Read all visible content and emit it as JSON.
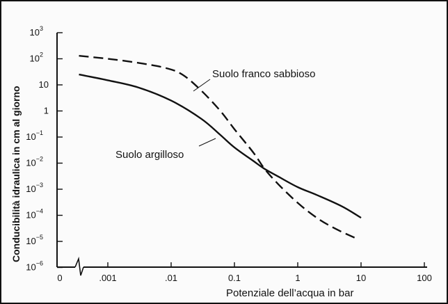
{
  "chart_data": {
    "type": "line",
    "xlabel": "Potenziale dell’acqua in bar",
    "ylabel": "Conducibilità idraulica in cm al giorno",
    "x_scale": "log",
    "y_scale": "log",
    "xlim": [
      0.0001,
      100
    ],
    "ylim": [
      1e-06,
      1000
    ],
    "x_ticks": [
      {
        "value": 0.0001,
        "label": "0"
      },
      {
        "value": 0.001,
        "label": ".001"
      },
      {
        "value": 0.01,
        "label": ".01"
      },
      {
        "value": 0.1,
        "label": "0.1"
      },
      {
        "value": 1,
        "label": "1"
      },
      {
        "value": 10,
        "label": "10"
      },
      {
        "value": 100,
        "label": "100"
      }
    ],
    "y_ticks": [
      {
        "value": 1e-06,
        "base": "10",
        "exp": "−6"
      },
      {
        "value": 1e-05,
        "base": "10",
        "exp": "−5"
      },
      {
        "value": 0.0001,
        "base": "10",
        "exp": "−4"
      },
      {
        "value": 0.001,
        "base": "10",
        "exp": "−3"
      },
      {
        "value": 0.01,
        "base": "10",
        "exp": "−2"
      },
      {
        "value": 0.1,
        "base": "10",
        "exp": "−1"
      },
      {
        "value": 1,
        "base": "1",
        "exp": ""
      },
      {
        "value": 10,
        "base": "10",
        "exp": ""
      },
      {
        "value": 100,
        "base": "10",
        "exp": "2"
      },
      {
        "value": 1000,
        "base": "10",
        "exp": "3"
      }
    ],
    "axis_break": true,
    "grid": false,
    "series": [
      {
        "name": "Suolo franco sabbioso",
        "style": "dashed",
        "x": [
          0.00035,
          0.001,
          0.003,
          0.008,
          0.015,
          0.03,
          0.06,
          0.1,
          0.2,
          0.3,
          0.5,
          1,
          2,
          4,
          9
        ],
        "y": [
          130,
          100,
          70,
          45,
          25,
          6,
          1,
          0.2,
          0.025,
          0.006,
          0.0015,
          0.0003,
          8e-05,
          3e-05,
          1.2e-05
        ]
      },
      {
        "name": "Suolo argilloso",
        "style": "solid",
        "x": [
          0.00035,
          0.001,
          0.003,
          0.01,
          0.03,
          0.06,
          0.1,
          0.2,
          0.3,
          0.5,
          1,
          2,
          5,
          10
        ],
        "y": [
          25,
          15,
          8,
          2.5,
          0.5,
          0.12,
          0.04,
          0.012,
          0.006,
          0.003,
          0.0012,
          0.0006,
          0.00022,
          8e-05
        ]
      }
    ]
  }
}
